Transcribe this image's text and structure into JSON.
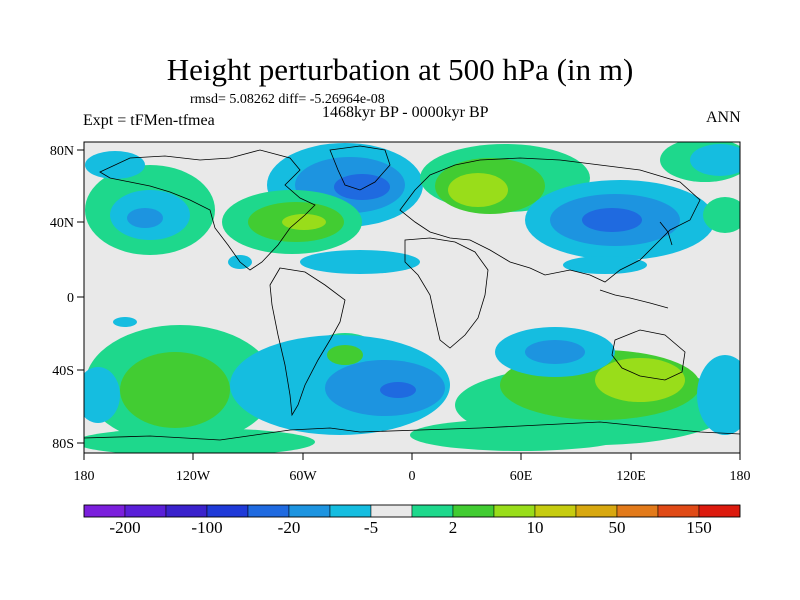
{
  "header": {
    "title": "Height perturbation at 500 hPa (in m)",
    "stats": "rmsd= 5.08262 diff= -5.26964e-08",
    "experiment": "Expt = tFMen-tfmea",
    "period": "1468kyr BP - 0000kyr BP",
    "season": "ANN"
  },
  "axes": {
    "x_ticks": [
      "180",
      "120W",
      "60W",
      "0",
      "60E",
      "120E",
      "180"
    ],
    "y_ticks": [
      "80N",
      "40N",
      "0",
      "40S",
      "80S"
    ]
  },
  "colorbar": {
    "colors": [
      "#7b1fdc",
      "#5a1fd8",
      "#3a22cc",
      "#1f3ad8",
      "#1f6ae0",
      "#1d94e0",
      "#15bde0",
      "#e9e9e9",
      "#1ed88c",
      "#42cc32",
      "#99dd1a",
      "#c6cc10",
      "#d8a810",
      "#e27a1a",
      "#e04a16",
      "#dc1a0e"
    ],
    "labels": [
      "-200",
      "-100",
      "-20",
      "-5",
      "2",
      "10",
      "50",
      "150"
    ]
  },
  "colors": {
    "background": "#e9e9e9",
    "coast": "#000000"
  }
}
